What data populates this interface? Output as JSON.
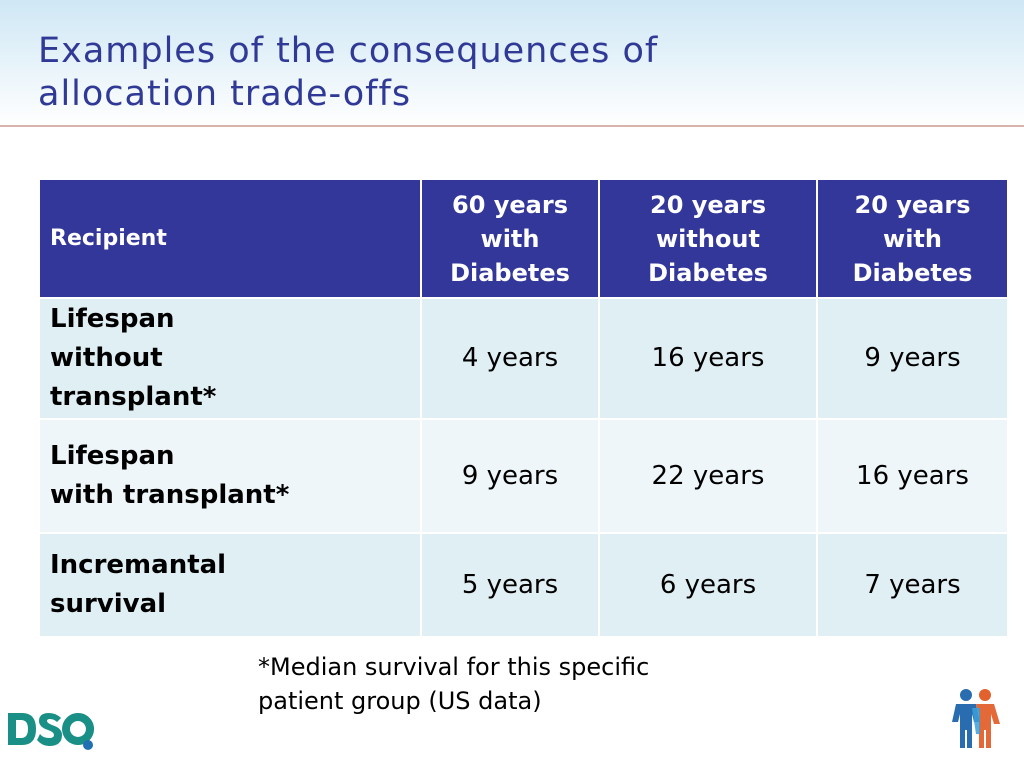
{
  "title": {
    "line1": "Examples of the consequences of",
    "line2": "allocation trade-offs"
  },
  "table": {
    "headers": [
      [
        "Recipient"
      ],
      [
        "60 years",
        "with",
        "Diabetes"
      ],
      [
        "20 years",
        "without",
        "Diabetes"
      ],
      [
        "20 years",
        "with",
        "Diabetes"
      ]
    ],
    "rows": [
      {
        "label": [
          "Lifespan",
          "without",
          "transplant*"
        ],
        "values": [
          "4 years",
          "16 years",
          "9 years"
        ]
      },
      {
        "label": [
          "Lifespan",
          "with transplant*"
        ],
        "values": [
          "9 years",
          "22 years",
          "16 years"
        ]
      },
      {
        "label": [
          "Incremantal",
          "survival"
        ],
        "values": [
          "5 years",
          "6 years",
          "7 years"
        ]
      }
    ]
  },
  "footnote": {
    "line1": "*Median survival for this specific",
    "line2": "patient group (US data)"
  },
  "logos": {
    "left": {
      "text": "DSO",
      "icon": "dso-logo",
      "color_text": "#1a8f86",
      "color_dot": "#1f6fb2"
    },
    "right": {
      "icon": "people-logo",
      "colors": [
        "#2a6cb0",
        "#e2612d",
        "#3aa0d8"
      ]
    }
  },
  "colors": {
    "title": "#303a96",
    "header_bg": "#33379a",
    "row_bg_dark": "#e0eff4",
    "row_bg_light": "#eef6f9",
    "rule": "#d9b3ad"
  }
}
